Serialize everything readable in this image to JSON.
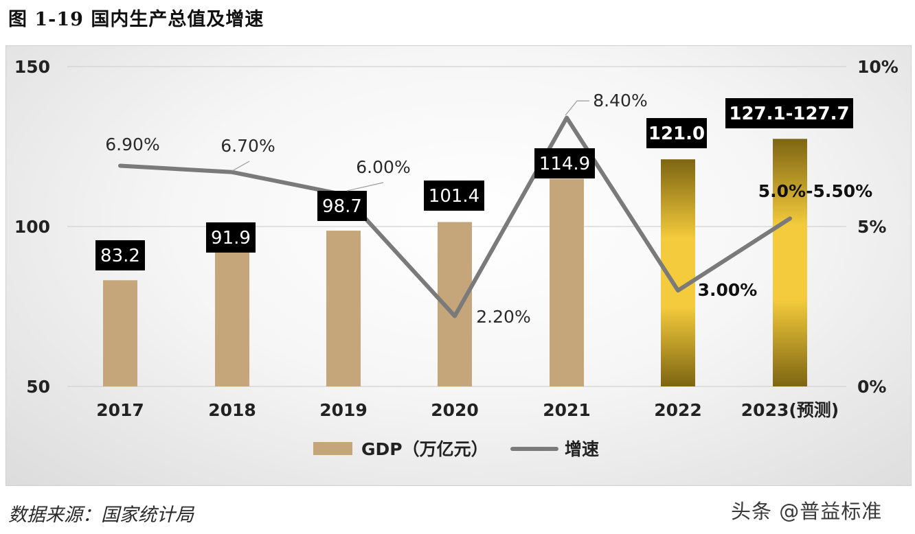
{
  "figure_title": "图 1-19  国内生产总值及增速",
  "source_text": "数据来源：国家统计局",
  "watermark_text": "头条 @普益标准",
  "colors": {
    "bar_tan": "#c4a67a",
    "bar_gold_light": "#f4cb3c",
    "bar_gold_dark": "#7d6512",
    "line_gray": "#7a7a7a",
    "label_box": "#000000"
  },
  "chart_data": {
    "type": "bar",
    "title": "国内生产总值及增速",
    "categories": [
      "2017",
      "2018",
      "2019",
      "2020",
      "2021",
      "2022",
      "2023(预测)"
    ],
    "series": [
      {
        "name": "GDP（万亿元）",
        "type": "bar",
        "axis": "left",
        "values": [
          83.2,
          91.9,
          98.7,
          101.4,
          114.9,
          121.0,
          127.4
        ],
        "labels": [
          "83.2",
          "91.9",
          "98.7",
          "101.4",
          "114.9",
          "121.0",
          "127.1-127.7"
        ]
      },
      {
        "name": "增速",
        "type": "line",
        "axis": "right",
        "values": [
          6.9,
          6.7,
          6.0,
          2.2,
          8.4,
          3.0,
          5.25
        ],
        "labels": [
          "6.90%",
          "6.70%",
          "6.00%",
          "2.20%",
          "8.40%",
          "3.00%",
          "5.0%-5.50%"
        ]
      }
    ],
    "y_left": {
      "min": 50,
      "max": 150,
      "ticks": [
        "150",
        "100",
        "50"
      ]
    },
    "y_right": {
      "min": 0,
      "max": 10,
      "ticks": [
        "10%",
        "5%",
        "0%"
      ]
    },
    "legend": {
      "position": "bottom-center",
      "gdp_label": "GDP（万亿元）",
      "growth_label": "增速"
    }
  }
}
